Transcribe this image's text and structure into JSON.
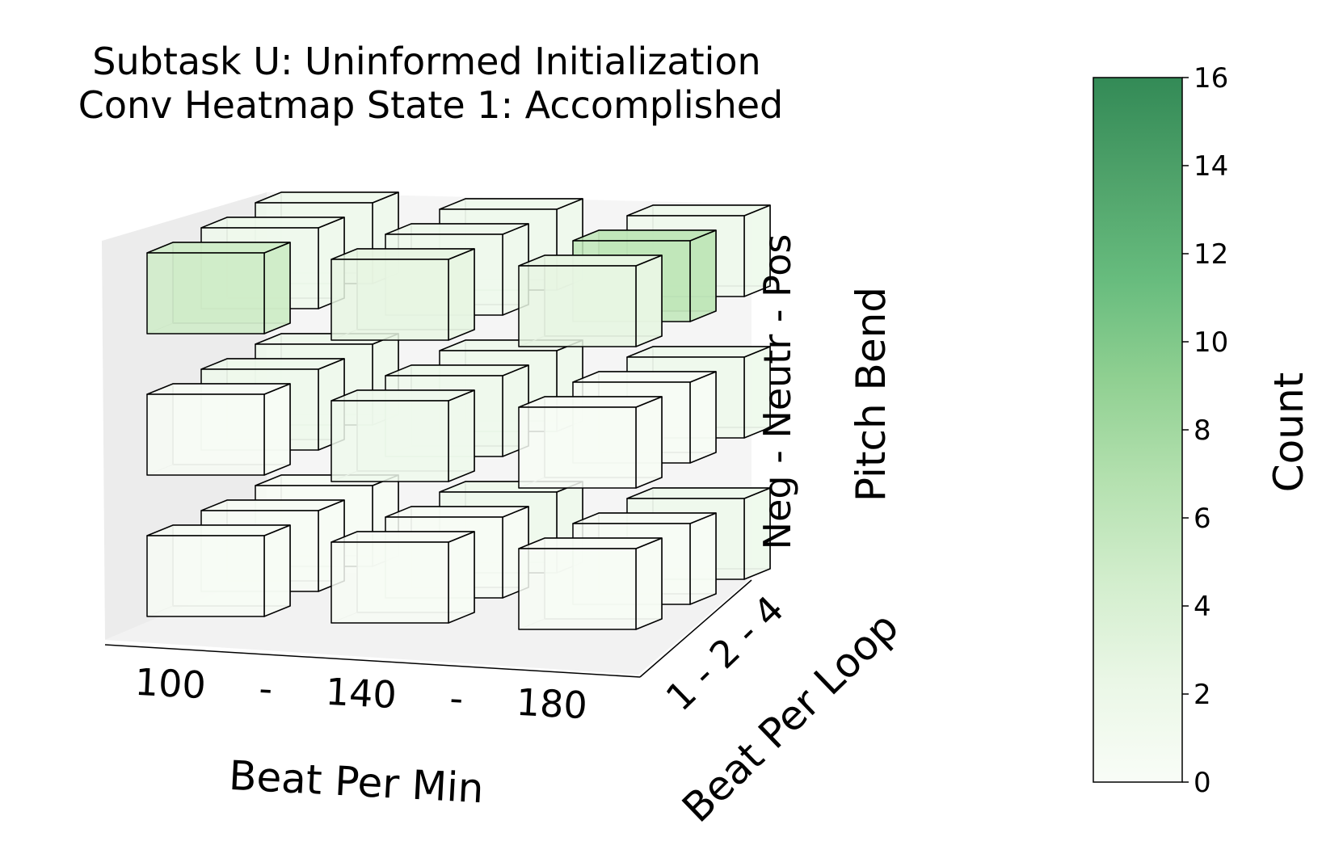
{
  "chart_data": {
    "type": "heatmap",
    "title_lines": [
      "Subtask U: Uninformed Initialization",
      "Conv Heatmap State 1: Accomplished"
    ],
    "axes": {
      "x": {
        "label": "Beat Per Min",
        "tick_labels": [
          "100",
          "-",
          "140",
          "-",
          "180"
        ]
      },
      "y": {
        "label": "Beat Per Loop",
        "tick_labels": [
          "1 - 2 - 4"
        ]
      },
      "z": {
        "label": "Pitch Bend",
        "tick_labels": [
          "Neg - Neutr - Pos"
        ]
      }
    },
    "colorbar": {
      "label": "Count",
      "min": 0,
      "max": 16,
      "ticks": [
        "0",
        "2",
        "4",
        "6",
        "8",
        "10",
        "12",
        "14",
        "16"
      ],
      "colormap": [
        "#f7fcf5",
        "#e5f5e0",
        "#c7e9c0",
        "#a1d99b",
        "#74c476",
        "#41ab5d",
        "#238b45",
        "#006d2c"
      ]
    },
    "x_categories": [
      "100",
      "140",
      "180"
    ],
    "y_categories": [
      "1",
      "2",
      "4"
    ],
    "z_categories": [
      "Neg",
      "Neutr",
      "Pos"
    ],
    "cells": [
      {
        "bpm": "100",
        "loop": "1",
        "pitch": "Pos",
        "count": 4
      },
      {
        "bpm": "100",
        "loop": "2",
        "pitch": "Pos",
        "count": 1
      },
      {
        "bpm": "100",
        "loop": "4",
        "pitch": "Pos",
        "count": 1
      },
      {
        "bpm": "140",
        "loop": "1",
        "pitch": "Pos",
        "count": 2
      },
      {
        "bpm": "140",
        "loop": "2",
        "pitch": "Pos",
        "count": 1
      },
      {
        "bpm": "140",
        "loop": "4",
        "pitch": "Pos",
        "count": 1
      },
      {
        "bpm": "180",
        "loop": "1",
        "pitch": "Pos",
        "count": 2
      },
      {
        "bpm": "180",
        "loop": "2",
        "pitch": "Pos",
        "count": 5
      },
      {
        "bpm": "180",
        "loop": "4",
        "pitch": "Pos",
        "count": 1
      },
      {
        "bpm": "100",
        "loop": "1",
        "pitch": "Neutr",
        "count": 0
      },
      {
        "bpm": "100",
        "loop": "2",
        "pitch": "Neutr",
        "count": 1
      },
      {
        "bpm": "100",
        "loop": "4",
        "pitch": "Neutr",
        "count": 1
      },
      {
        "bpm": "140",
        "loop": "1",
        "pitch": "Neutr",
        "count": 1
      },
      {
        "bpm": "140",
        "loop": "2",
        "pitch": "Neutr",
        "count": 1
      },
      {
        "bpm": "140",
        "loop": "4",
        "pitch": "Neutr",
        "count": 1
      },
      {
        "bpm": "180",
        "loop": "1",
        "pitch": "Neutr",
        "count": 0
      },
      {
        "bpm": "180",
        "loop": "2",
        "pitch": "Neutr",
        "count": 0
      },
      {
        "bpm": "180",
        "loop": "4",
        "pitch": "Neutr",
        "count": 1
      },
      {
        "bpm": "100",
        "loop": "1",
        "pitch": "Neg",
        "count": 0
      },
      {
        "bpm": "100",
        "loop": "2",
        "pitch": "Neg",
        "count": 0
      },
      {
        "bpm": "100",
        "loop": "4",
        "pitch": "Neg",
        "count": 0
      },
      {
        "bpm": "140",
        "loop": "1",
        "pitch": "Neg",
        "count": 0
      },
      {
        "bpm": "140",
        "loop": "2",
        "pitch": "Neg",
        "count": 0
      },
      {
        "bpm": "140",
        "loop": "4",
        "pitch": "Neg",
        "count": 1
      },
      {
        "bpm": "180",
        "loop": "1",
        "pitch": "Neg",
        "count": 0
      },
      {
        "bpm": "180",
        "loop": "2",
        "pitch": "Neg",
        "count": 0
      },
      {
        "bpm": "180",
        "loop": "4",
        "pitch": "Neg",
        "count": 1
      }
    ],
    "grid": false
  }
}
